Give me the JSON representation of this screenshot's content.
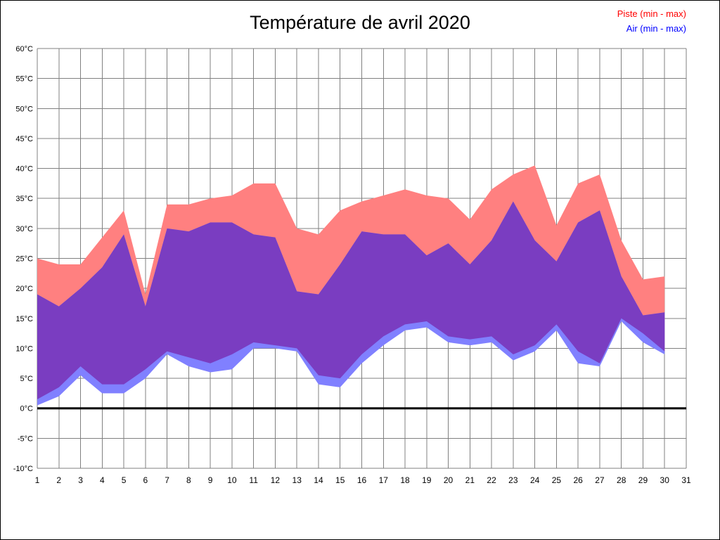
{
  "chart_data": {
    "type": "area",
    "title": "Température de avril 2020",
    "legend": [
      {
        "label": "Piste (min - max)",
        "color": "#ff0000"
      },
      {
        "label": "Air (min - max)",
        "color": "#0000ff"
      }
    ],
    "xlim": [
      1,
      31
    ],
    "ylim": [
      -10,
      60
    ],
    "y_tick_step": 5,
    "grid": true,
    "zero_line": true,
    "legend_position": "top-right",
    "x_tick_labels": [
      "1",
      "2",
      "3",
      "4",
      "5",
      "6",
      "7",
      "8",
      "9",
      "10",
      "11",
      "12",
      "13",
      "14",
      "15",
      "16",
      "17",
      "18",
      "19",
      "20",
      "21",
      "22",
      "23",
      "24",
      "25",
      "26",
      "27",
      "28",
      "29",
      "30",
      "31"
    ],
    "y_tick_labels": [
      "60°C",
      "55°C",
      "50°C",
      "45°C",
      "40°C",
      "35°C",
      "30°C",
      "25°C",
      "20°C",
      "15°C",
      "10°C",
      "5°C",
      "0°C",
      "-5°C",
      "-10°C"
    ],
    "days": [
      1,
      2,
      3,
      4,
      5,
      6,
      7,
      8,
      9,
      10,
      11,
      12,
      13,
      14,
      15,
      16,
      17,
      18,
      19,
      20,
      21,
      22,
      23,
      24,
      25,
      26,
      27,
      28,
      29,
      30
    ],
    "series": [
      {
        "name": "Piste",
        "legend_label": "Piste (min - max)",
        "fill": "#ff8080",
        "min": [
          1.5,
          3.5,
          7,
          4,
          4,
          6.5,
          9.5,
          8.5,
          7.5,
          9,
          11,
          10.5,
          10,
          5.5,
          5,
          9,
          12,
          14,
          14.5,
          12,
          11.5,
          12,
          9,
          10.5,
          14,
          9.5,
          7.5,
          15,
          12.5,
          9.5
        ],
        "max": [
          25,
          24,
          24,
          28.5,
          33,
          19,
          34,
          34,
          35,
          35.5,
          37.5,
          37.5,
          30,
          29,
          33,
          34.5,
          35.5,
          36.5,
          35.5,
          35,
          31.5,
          36.5,
          39,
          40.5,
          30.5,
          37.5,
          39,
          28,
          21.5,
          22
        ]
      },
      {
        "name": "Air",
        "legend_label": "Air (min - max)",
        "fill": "#8080ff",
        "min": [
          0.5,
          2,
          5.5,
          2.5,
          2.5,
          5,
          9,
          7,
          6,
          6.5,
          10,
          10,
          9.5,
          4,
          3.5,
          7.5,
          10.5,
          13,
          13.5,
          11,
          10.5,
          11,
          8,
          9.5,
          13,
          7.5,
          7,
          14.5,
          11,
          9
        ],
        "max": [
          19,
          17,
          20,
          23.5,
          29,
          17,
          30,
          29.5,
          31,
          31,
          29,
          28.5,
          19.5,
          19,
          24,
          29.5,
          29,
          29,
          25.5,
          27.5,
          24,
          28,
          34.5,
          28,
          24.5,
          31,
          33,
          22,
          15.5,
          16
        ]
      }
    ],
    "overlap_fill": "#7a3dc1",
    "grid_color": "#808080",
    "zero_line_color": "#000000",
    "tick_label_color": "#000000"
  }
}
